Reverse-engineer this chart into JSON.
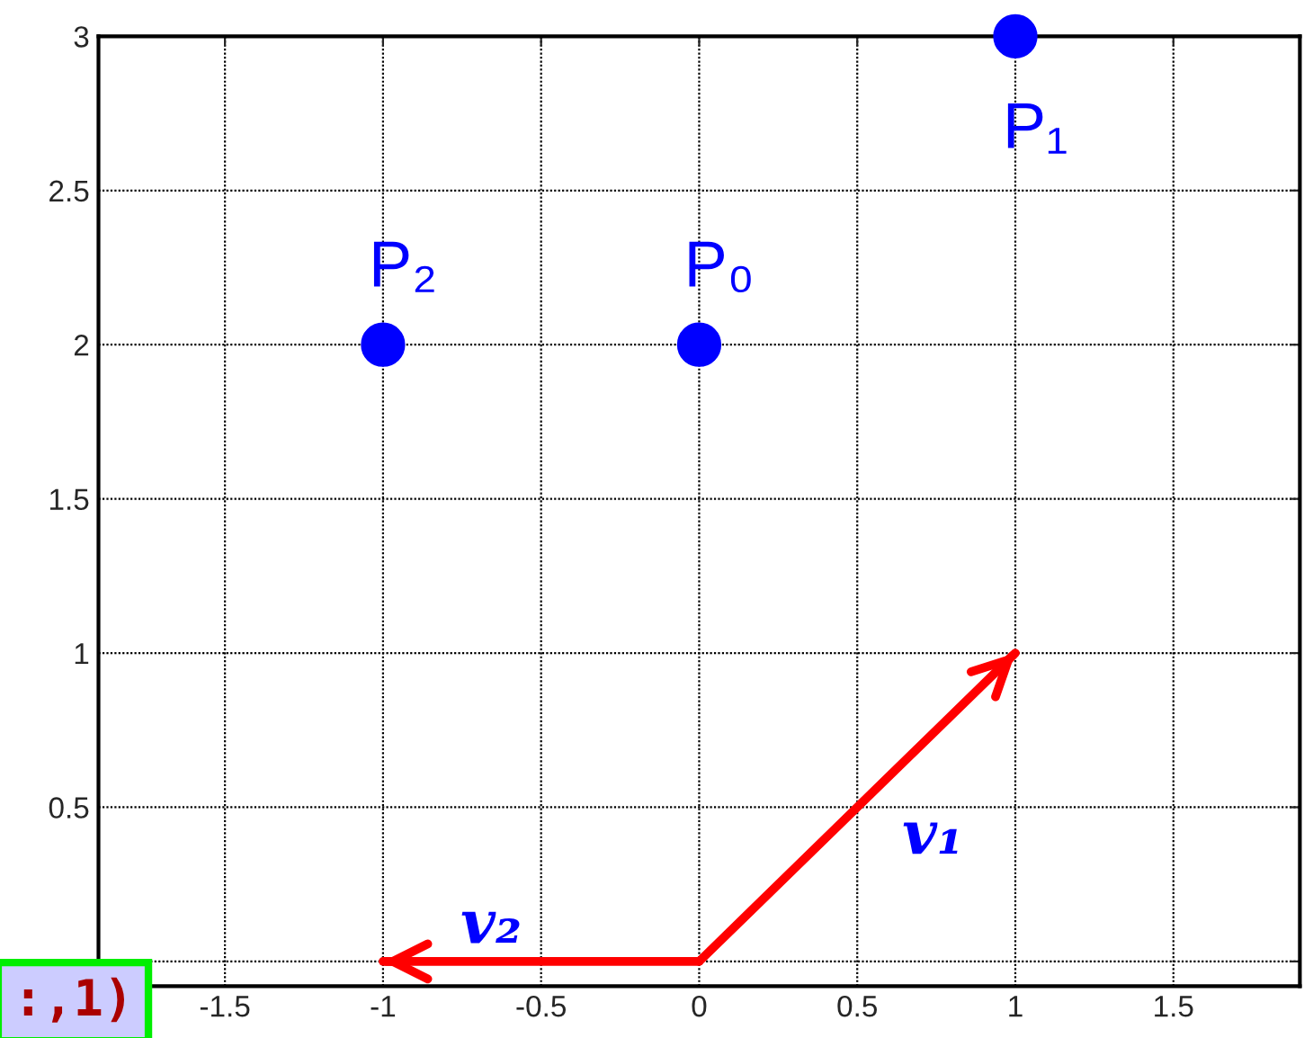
{
  "chart_data": {
    "type": "scatter",
    "series": [
      {
        "color": "#0000ff",
        "x": [
          0,
          1,
          -1
        ],
        "values": [
          2,
          3,
          2
        ],
        "marker": "circle"
      },
      {
        "type": "line",
        "name": "v₁",
        "color": "#ff0000",
        "x": [
          0,
          1
        ],
        "values": [
          0,
          1
        ]
      },
      {
        "type": "line",
        "name": "v₂",
        "color": "#ff0000",
        "x": [
          0,
          -1
        ],
        "values": [
          0,
          0
        ]
      }
    ],
    "annotations": [
      {
        "text": "P₀",
        "x": 0,
        "y": 2
      },
      {
        "text": "P₁",
        "x": 1,
        "y": 3
      },
      {
        "text": "P₂",
        "x": -1,
        "y": 2
      },
      ":,1)"
    ],
    "xlim": [
      -1.9,
      1.9
    ],
    "ylim": [
      -0.08,
      3
    ],
    "xticks": [
      -1.5,
      -1,
      -0.5,
      0,
      0.5,
      1,
      1.5
    ],
    "yticks": [
      {
        "value": 0,
        "label": null
      },
      0.5,
      1,
      1.5,
      2,
      2.5,
      3
    ],
    "grid": true
  }
}
